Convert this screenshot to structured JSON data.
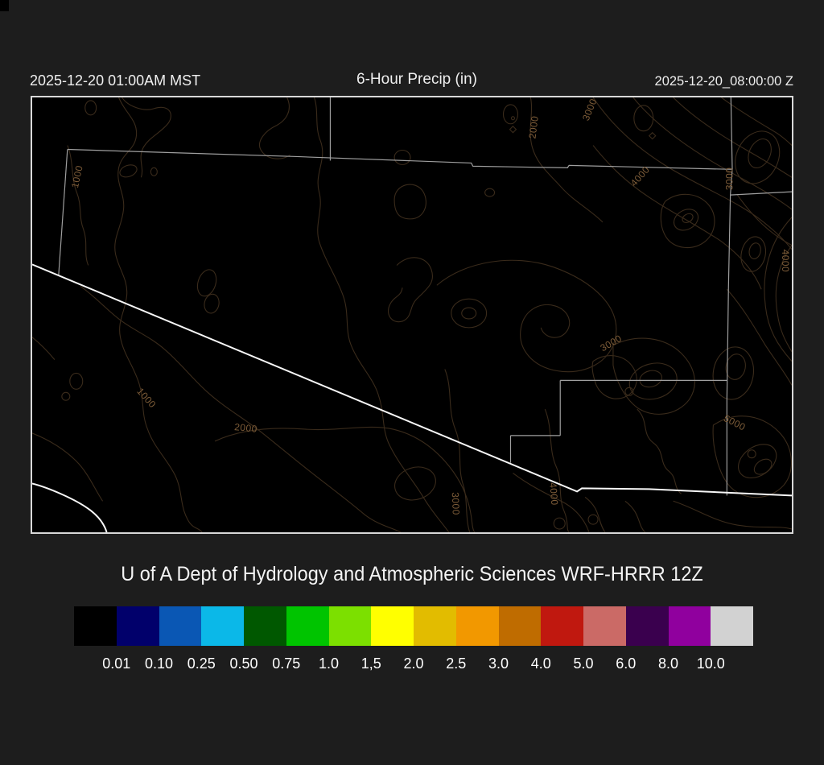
{
  "page": {
    "background_color": "#1d1d1d"
  },
  "header": {
    "left_timestamp": "2025-12-20 01:00AM MST",
    "title": "6-Hour Precip (in)",
    "right_timestamp": "2025-12-20_08:00:00 Z"
  },
  "map": {
    "background_color": "#000000",
    "frame_color": "#d9d9d9",
    "state_border_color": "#9f9f9f",
    "highlight_border_color": "#f7f7f7",
    "contour_line_color": "#3a2b1b",
    "contour_label_color": "#7d5c38",
    "contour_labels": [
      {
        "value": "1000"
      },
      {
        "value": "2000"
      },
      {
        "value": "3000"
      },
      {
        "value": "4000"
      },
      {
        "value": "3000"
      },
      {
        "value": "4000"
      },
      {
        "value": "3000"
      },
      {
        "value": "1000"
      },
      {
        "value": "2000"
      },
      {
        "value": "3000"
      },
      {
        "value": "4000"
      },
      {
        "value": "5000"
      }
    ]
  },
  "caption": {
    "text": "U of A Dept of Hydrology and Atmospheric Sciences WRF-HRRR 12Z"
  },
  "colorbar": {
    "colors": [
      "#000000",
      "#01006b",
      "#0a57b4",
      "#0bb8e8",
      "#005800",
      "#00c400",
      "#7ce000",
      "#ffff00",
      "#e2bc00",
      "#f29800",
      "#bf6c00",
      "#c0180f",
      "#cb6a66",
      "#3a004e",
      "#90009e",
      "#d2d2d2"
    ],
    "labels": [
      "0.01",
      "0.10",
      "0.25",
      "0.50",
      "0.75",
      "1.0",
      "1,5",
      "2.0",
      "2.5",
      "3.0",
      "4.0",
      "5.0",
      "6.0",
      "8.0",
      "10.0"
    ],
    "label_color": "#ffffff"
  }
}
